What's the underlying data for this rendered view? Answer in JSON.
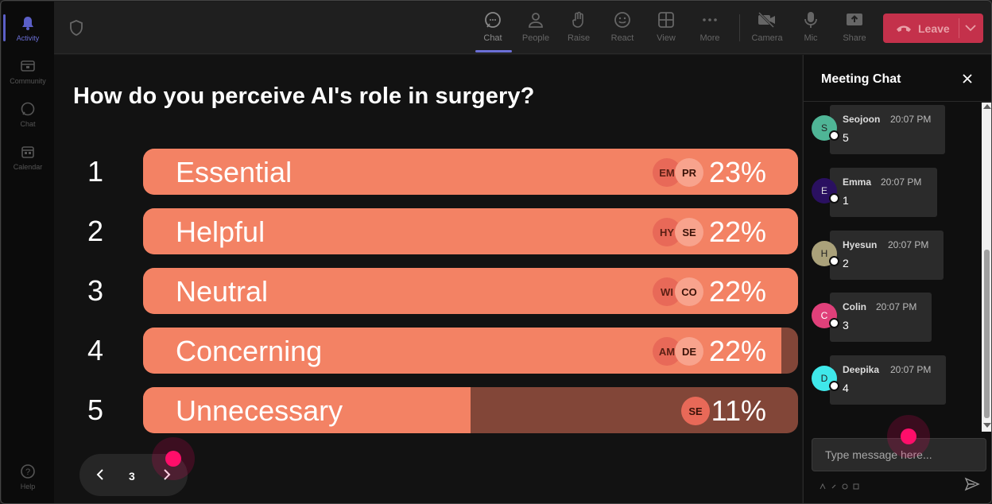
{
  "rail": {
    "items": [
      {
        "label": "Activity",
        "icon": "bell-icon"
      },
      {
        "label": "Community",
        "icon": "community-icon"
      },
      {
        "label": "Chat",
        "icon": "chat-icon"
      },
      {
        "label": "Calendar",
        "icon": "calendar-icon"
      },
      {
        "label": "Help",
        "icon": "help-icon"
      }
    ]
  },
  "toolbar": {
    "buttons": [
      {
        "label": "Chat",
        "icon": "chat-icon"
      },
      {
        "label": "People",
        "icon": "people-icon"
      },
      {
        "label": "Raise",
        "icon": "hand-icon"
      },
      {
        "label": "React",
        "icon": "smiley-icon"
      },
      {
        "label": "View",
        "icon": "grid-icon"
      },
      {
        "label": "More",
        "icon": "ellipsis-icon"
      },
      {
        "label": "Camera",
        "icon": "camera-off-icon"
      },
      {
        "label": "Mic",
        "icon": "mic-icon"
      },
      {
        "label": "Share",
        "icon": "share-icon"
      }
    ],
    "leave_label": "Leave"
  },
  "poll": {
    "question": "How do you perceive AI's role in surgery?",
    "options": [
      {
        "num": "1",
        "label": "Essential",
        "percent": "23%",
        "fill": 1.0,
        "avatars": [
          "EM",
          "PR"
        ]
      },
      {
        "num": "2",
        "label": "Helpful",
        "percent": "22%",
        "fill": 1.0,
        "avatars": [
          "HY",
          "SE"
        ]
      },
      {
        "num": "3",
        "label": "Neutral",
        "percent": "22%",
        "fill": 1.0,
        "avatars": [
          "WI",
          "CO"
        ]
      },
      {
        "num": "4",
        "label": "Concerning",
        "percent": "22%",
        "fill": 0.975,
        "avatars": [
          "AM",
          "DE"
        ]
      },
      {
        "num": "5",
        "label": "Unnecessary",
        "percent": "11%",
        "fill": 0.5,
        "avatars": [
          "SE"
        ]
      }
    ],
    "page": "3"
  },
  "chat": {
    "title": "Meeting Chat",
    "messages": [
      {
        "initial": "S",
        "name": "Seojoon",
        "time": "20:07 PM",
        "text": "5",
        "color": "#4fb596"
      },
      {
        "initial": "E",
        "name": "Emma",
        "time": "20:07 PM",
        "text": "1",
        "color": "#2a1060"
      },
      {
        "initial": "H",
        "name": "Hyesun",
        "time": "20:07 PM",
        "text": "2",
        "color": "#aaa17a"
      },
      {
        "initial": "C",
        "name": "Colin",
        "time": "20:07 PM",
        "text": "3",
        "color": "#e0407a"
      },
      {
        "initial": "D",
        "name": "Deepika",
        "time": "20:07 PM",
        "text": "4",
        "color": "#3fe8ea"
      }
    ],
    "placeholder": "Type message here..."
  },
  "colors": {
    "bar_fill": "#f38264",
    "bar_track": "#824638",
    "leave": "#c4314b",
    "accent": "#5b5fc7"
  }
}
